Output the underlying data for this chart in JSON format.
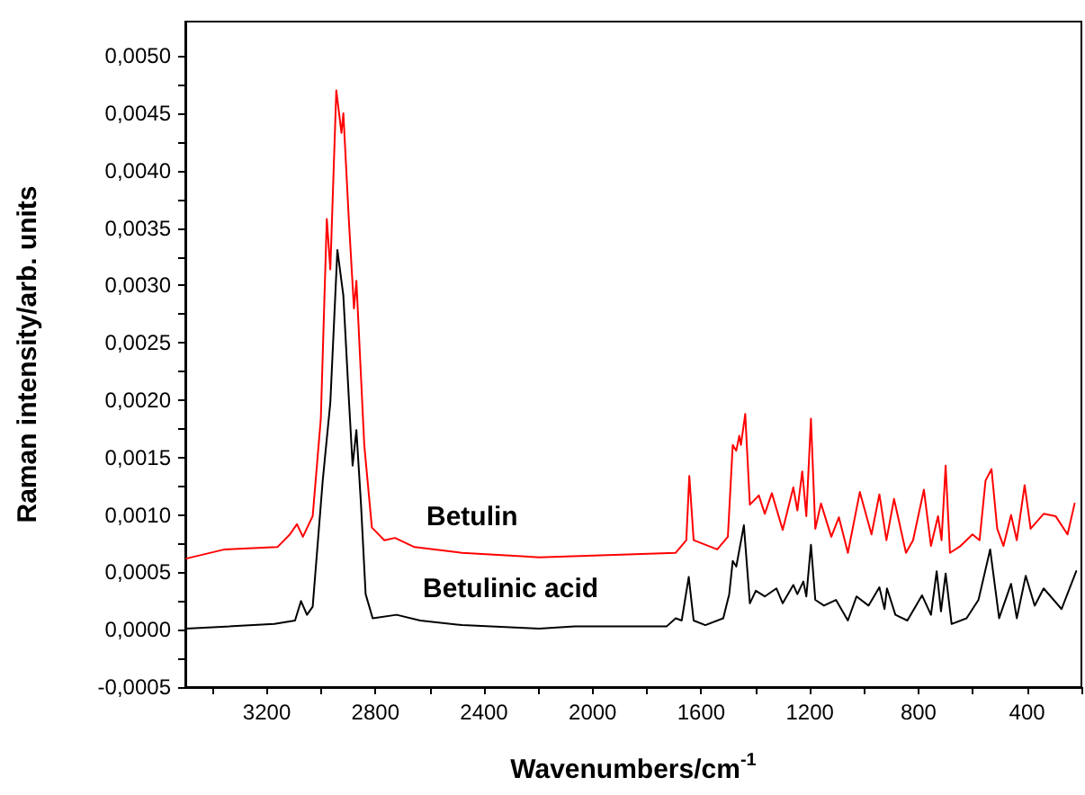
{
  "chart_data": {
    "type": "line",
    "xlabel": "Wavenumbers/cm$^{-1}$",
    "ylabel": "Raman intensity/arb. units",
    "xlim": [
      3500,
      200
    ],
    "ylim": [
      -0.0005,
      0.0053
    ],
    "xticks": [
      {
        "value": 3400,
        "label": null
      },
      3200,
      {
        "value": 3000,
        "label": null
      },
      2800,
      {
        "value": 2600,
        "label": null
      },
      2400,
      {
        "value": 2200,
        "label": null
      },
      2000,
      {
        "value": 1800,
        "label": null
      },
      1600,
      {
        "value": 1400,
        "label": null
      },
      1200,
      {
        "value": 1000,
        "label": null
      },
      800,
      {
        "value": 600,
        "label": null
      },
      400,
      {
        "value": 200,
        "label": null
      }
    ],
    "yticks": [
      {
        "value": -0.0005,
        "label": "-0,0005"
      },
      {
        "value": -0.00025,
        "label": null
      },
      {
        "value": 0,
        "label": "0,0000"
      },
      {
        "value": 0.00025,
        "label": null
      },
      {
        "value": 0.0005,
        "label": "0,0005"
      },
      {
        "value": 0.00075,
        "label": null
      },
      {
        "value": 0.001,
        "label": "0,0010"
      },
      {
        "value": 0.00125,
        "label": null
      },
      {
        "value": 0.0015,
        "label": "0,0015"
      },
      {
        "value": 0.00175,
        "label": null
      },
      {
        "value": 0.002,
        "label": "0,0020"
      },
      {
        "value": 0.00225,
        "label": null
      },
      {
        "value": 0.0025,
        "label": "0,0025"
      },
      {
        "value": 0.00275,
        "label": null
      },
      {
        "value": 0.003,
        "label": "0,0030"
      },
      {
        "value": 0.00325,
        "label": null
      },
      {
        "value": 0.0035,
        "label": "0,0035"
      },
      {
        "value": 0.00375,
        "label": null
      },
      {
        "value": 0.004,
        "label": "0,0040"
      },
      {
        "value": 0.00425,
        "label": null
      },
      {
        "value": 0.0045,
        "label": "0,0045"
      },
      {
        "value": 0.00475,
        "label": null
      },
      {
        "value": 0.005,
        "label": "0,0050"
      }
    ],
    "grid": false,
    "legend": false,
    "marker": "none",
    "line_style": "solid",
    "series": [
      {
        "name": "Betulin",
        "color": "#ff0000",
        "x": [
          3497,
          3355,
          3161,
          3115,
          3089,
          3067,
          3031,
          3001,
          2979,
          2966,
          2944,
          2925,
          2918,
          2898,
          2879,
          2870,
          2841,
          2813,
          2767,
          2728,
          2656,
          2481,
          2262,
          2197,
          1694,
          1655,
          1644,
          1628,
          1541,
          1502,
          1484,
          1471,
          1460,
          1454,
          1438,
          1421,
          1388,
          1366,
          1340,
          1300,
          1261,
          1246,
          1228,
          1213,
          1196,
          1180,
          1159,
          1121,
          1093,
          1060,
          1016,
          973,
          944,
          918,
          890,
          846,
          820,
          780,
          754,
          728,
          715,
          700,
          684,
          645,
          601,
          575,
          553,
          531,
          510,
          487,
          459,
          438,
          409,
          387,
          339,
          295,
          251,
          225
        ],
        "values": [
          0.00062,
          0.0007,
          0.00072,
          0.00083,
          0.00092,
          0.00081,
          0.00099,
          0.00184,
          0.00358,
          0.00314,
          0.0047,
          0.00433,
          0.0045,
          0.00358,
          0.0028,
          0.00304,
          0.00161,
          0.00089,
          0.00078,
          0.0008,
          0.00072,
          0.00067,
          0.00064,
          0.00063,
          0.00067,
          0.00078,
          0.00134,
          0.00078,
          0.0007,
          0.00081,
          0.00161,
          0.00156,
          0.00169,
          0.00161,
          0.00188,
          0.00109,
          0.00117,
          0.00101,
          0.00119,
          0.00087,
          0.00124,
          0.00104,
          0.00138,
          0.00099,
          0.00184,
          0.00088,
          0.0011,
          0.00081,
          0.00098,
          0.00067,
          0.0012,
          0.00083,
          0.00118,
          0.00078,
          0.00114,
          0.00067,
          0.00078,
          0.00122,
          0.00073,
          0.00099,
          0.00078,
          0.00143,
          0.00067,
          0.00073,
          0.00083,
          0.00078,
          0.0013,
          0.0014,
          0.00088,
          0.00073,
          0.001,
          0.00078,
          0.00126,
          0.00088,
          0.00101,
          0.00099,
          0.00083,
          0.0011
        ]
      },
      {
        "name": "Betulinic acid",
        "color": "#000000",
        "x": [
          3497,
          3172,
          3096,
          3074,
          3052,
          3031,
          2994,
          2966,
          2940,
          2918,
          2897,
          2884,
          2870,
          2853,
          2836,
          2810,
          2722,
          2635,
          2481,
          2197,
          2066,
          1727,
          1694,
          1672,
          1646,
          1628,
          1585,
          1519,
          1497,
          1484,
          1471,
          1443,
          1421,
          1399,
          1366,
          1323,
          1300,
          1261,
          1246,
          1224,
          1213,
          1196,
          1180,
          1148,
          1104,
          1060,
          1028,
          984,
          944,
          925,
          916,
          885,
          841,
          787,
          754,
          733,
          717,
          700,
          678,
          623,
          579,
          536,
          503,
          459,
          438,
          405,
          372,
          339,
          273,
          219
        ],
        "values": [
          1e-05,
          5e-05,
          8e-05,
          0.00025,
          0.00013,
          0.0002,
          0.0013,
          0.00198,
          0.00331,
          0.00291,
          0.00198,
          0.00143,
          0.00174,
          0.00109,
          0.00031,
          0.0001,
          0.00013,
          8e-05,
          4e-05,
          1e-05,
          3e-05,
          3e-05,
          0.0001,
          8e-05,
          0.00046,
          8e-05,
          4e-05,
          0.0001,
          0.00031,
          0.0006,
          0.00055,
          0.00091,
          0.00023,
          0.00034,
          0.00029,
          0.00036,
          0.00023,
          0.00039,
          0.00031,
          0.00042,
          0.00029,
          0.00074,
          0.00026,
          0.00021,
          0.00026,
          8e-05,
          0.00029,
          0.00021,
          0.00037,
          0.00018,
          0.00036,
          0.00013,
          8e-05,
          0.0003,
          0.00013,
          0.00051,
          0.00016,
          0.00049,
          5e-05,
          0.0001,
          0.00026,
          0.0007,
          0.0001,
          0.0004,
          0.0001,
          0.00047,
          0.00021,
          0.00036,
          0.00018,
          0.00051
        ]
      }
    ]
  }
}
